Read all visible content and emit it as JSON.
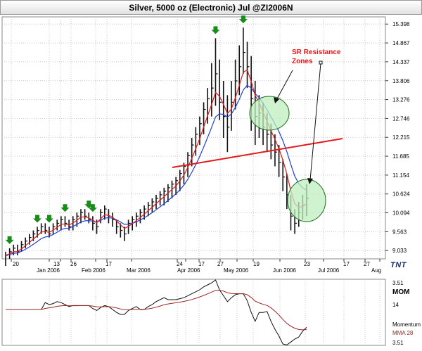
{
  "window": {
    "title": "Silver, 5000 oz (Electronic) Jul @ZI2006N"
  },
  "logo": "TNT",
  "annotation": {
    "text_line1": "SR Resistance",
    "text_line2": "Zones"
  },
  "colors": {
    "price_bars": "#111111",
    "ma_fast": "#e31a1c",
    "ma_slow": "#1f3fd8",
    "trendline": "#e31a1c",
    "zone_fill": "#bfefbf",
    "zone_stroke": "#1e6b1e",
    "signal_arrow": "#1a8c1a",
    "momentum": "#111111",
    "mma": "#9b2525",
    "grid": "#c8c8c8"
  },
  "chart_data": [
    {
      "type": "bar",
      "title": "Silver, 5000 oz (Electronic) Jul @ZI2006N",
      "x_ticks": [
        "20",
        "Jan 2006",
        "13",
        "26",
        "Feb 2006",
        "17",
        "Mar 2006",
        "24",
        "Apr 2006",
        "17",
        "27",
        "May 2006",
        "19",
        "Jun 2006",
        "23",
        "Jul 2006",
        "17",
        "27",
        "Aug"
      ],
      "y_ticks": [
        15.398,
        14.867,
        14.337,
        13.806,
        13.276,
        12.746,
        12.215,
        11.685,
        11.154,
        10.624,
        10.094,
        9.563,
        9.033
      ],
      "ylim": [
        8.8,
        15.6
      ],
      "grid": true,
      "y_axis_side": "right",
      "series": [
        {
          "name": "price",
          "values": [
            [
              9.0,
              8.6,
              8.9
            ],
            [
              9.1,
              8.8,
              9.0
            ],
            [
              9.2,
              8.9,
              9.1
            ],
            [
              9.2,
              8.9,
              9.0
            ],
            [
              9.3,
              9.0,
              9.2
            ],
            [
              9.4,
              9.1,
              9.3
            ],
            [
              9.5,
              9.2,
              9.4
            ],
            [
              9.6,
              9.3,
              9.5
            ],
            [
              9.7,
              9.4,
              9.6
            ],
            [
              9.8,
              9.5,
              9.7
            ],
            [
              9.8,
              9.5,
              9.6
            ],
            [
              9.7,
              9.4,
              9.5
            ],
            [
              9.8,
              9.5,
              9.7
            ],
            [
              9.9,
              9.6,
              9.8
            ],
            [
              10.0,
              9.6,
              9.9
            ],
            [
              10.0,
              9.7,
              9.8
            ],
            [
              9.9,
              9.6,
              9.7
            ],
            [
              10.0,
              9.6,
              9.9
            ],
            [
              10.1,
              9.7,
              10.0
            ],
            [
              10.2,
              9.8,
              10.1
            ],
            [
              10.2,
              9.9,
              10.0
            ],
            [
              10.1,
              9.8,
              9.9
            ],
            [
              10.0,
              9.6,
              9.8
            ],
            [
              9.9,
              9.5,
              9.7
            ],
            [
              10.2,
              9.8,
              10.1
            ],
            [
              10.3,
              9.9,
              10.2
            ],
            [
              10.2,
              9.8,
              10.0
            ],
            [
              10.1,
              9.7,
              9.9
            ],
            [
              9.9,
              9.5,
              9.7
            ],
            [
              9.8,
              9.4,
              9.6
            ],
            [
              9.7,
              9.3,
              9.5
            ],
            [
              9.9,
              9.5,
              9.8
            ],
            [
              10.0,
              9.6,
              9.9
            ],
            [
              10.1,
              9.7,
              10.0
            ],
            [
              10.2,
              9.8,
              10.1
            ],
            [
              10.3,
              9.9,
              10.2
            ],
            [
              10.4,
              10.0,
              10.3
            ],
            [
              10.5,
              10.1,
              10.4
            ],
            [
              10.6,
              10.2,
              10.5
            ],
            [
              10.7,
              10.3,
              10.6
            ],
            [
              10.8,
              10.3,
              10.7
            ],
            [
              10.9,
              10.4,
              10.8
            ],
            [
              11.0,
              10.5,
              10.9
            ],
            [
              11.1,
              10.6,
              11.0
            ],
            [
              11.3,
              10.7,
              11.2
            ],
            [
              11.5,
              10.9,
              11.4
            ],
            [
              11.8,
              11.1,
              11.7
            ],
            [
              12.2,
              11.4,
              12.0
            ],
            [
              12.5,
              11.7,
              12.3
            ],
            [
              12.8,
              12.0,
              12.6
            ],
            [
              13.2,
              12.3,
              13.0
            ],
            [
              13.6,
              12.6,
              13.3
            ],
            [
              14.3,
              12.8,
              13.6
            ],
            [
              15.0,
              13.1,
              14.0
            ],
            [
              14.4,
              12.7,
              13.2
            ],
            [
              13.8,
              12.2,
              12.8
            ],
            [
              13.4,
              11.8,
              12.5
            ],
            [
              13.8,
              12.4,
              13.2
            ],
            [
              14.4,
              13.0,
              13.8
            ],
            [
              14.8,
              13.4,
              14.2
            ],
            [
              15.3,
              14.0,
              14.6
            ],
            [
              14.9,
              13.6,
              14.2
            ],
            [
              14.5,
              12.4,
              13.3
            ],
            [
              13.8,
              12.0,
              12.8
            ],
            [
              13.4,
              12.2,
              12.9
            ],
            [
              13.2,
              12.0,
              12.5
            ],
            [
              12.9,
              11.8,
              12.3
            ],
            [
              12.6,
              11.6,
              12.0
            ],
            [
              12.3,
              11.4,
              11.8
            ],
            [
              12.0,
              11.1,
              11.5
            ],
            [
              11.6,
              10.7,
              11.1
            ],
            [
              11.2,
              10.2,
              10.6
            ],
            [
              10.6,
              9.6,
              10.0
            ],
            [
              10.2,
              9.5,
              9.8
            ],
            [
              10.4,
              9.7,
              10.1
            ],
            [
              10.6,
              9.9,
              10.3
            ],
            [
              10.9,
              10.0,
              10.5
            ]
          ]
        },
        {
          "name": "fast MA"
        },
        {
          "name": "slow MA"
        }
      ]
    },
    {
      "type": "line",
      "title": "MOM",
      "y_ticks": [
        "3.51",
        "14",
        "3.51"
      ],
      "legend": [
        "Momentum",
        "MMA 28"
      ],
      "grid": false
    }
  ]
}
